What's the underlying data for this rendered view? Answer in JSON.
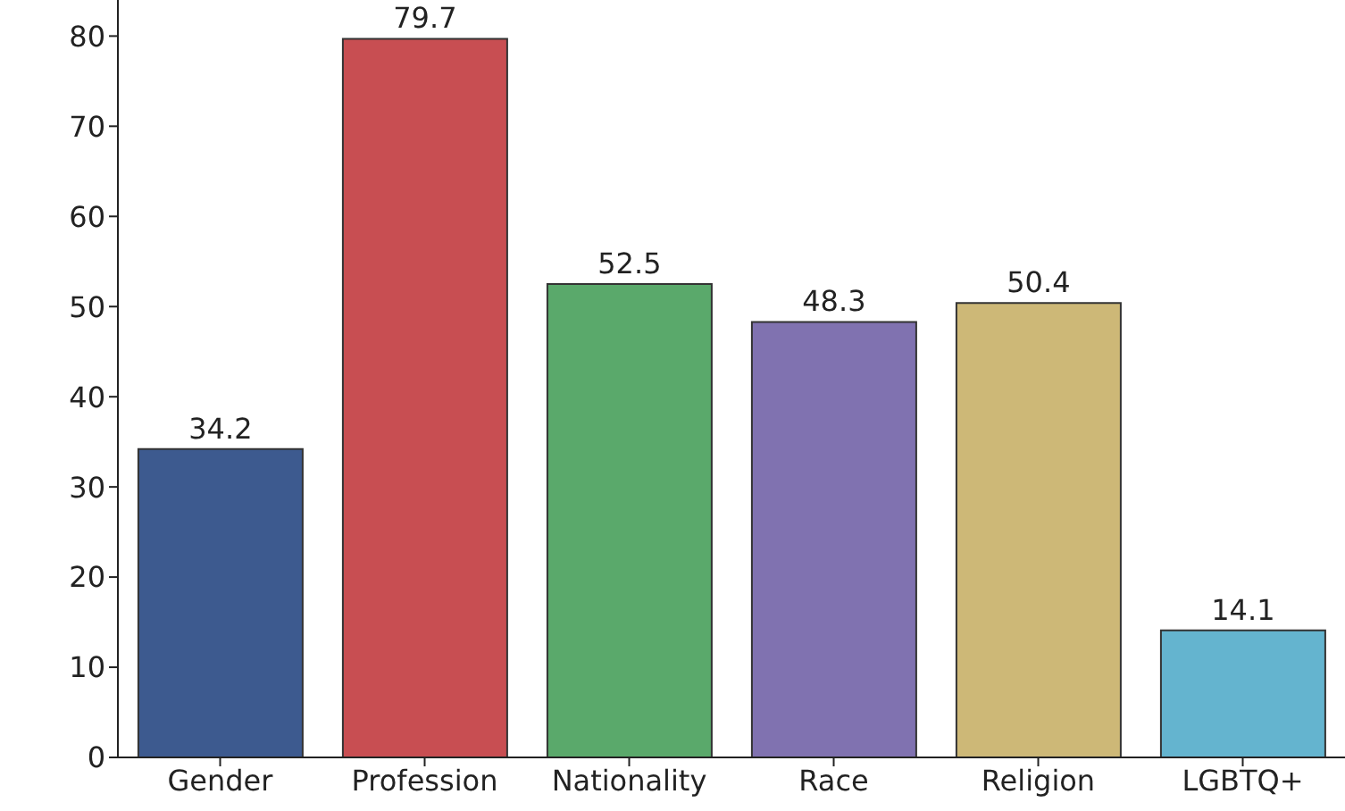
{
  "chart_data": {
    "type": "bar",
    "categories": [
      "Gender",
      "Profession",
      "Nationality",
      "Race",
      "Religion",
      "LGBTQ+"
    ],
    "values": [
      34.2,
      79.7,
      52.5,
      48.3,
      50.4,
      14.1
    ],
    "colors": [
      "#3d5a8f",
      "#c84e52",
      "#5aa96b",
      "#8072b0",
      "#cdb877",
      "#64b4cf"
    ],
    "ylim": [
      0,
      84
    ],
    "yticks": [
      0,
      10,
      20,
      30,
      40,
      50,
      60,
      70,
      80
    ],
    "grid": false,
    "data_labels": true
  }
}
